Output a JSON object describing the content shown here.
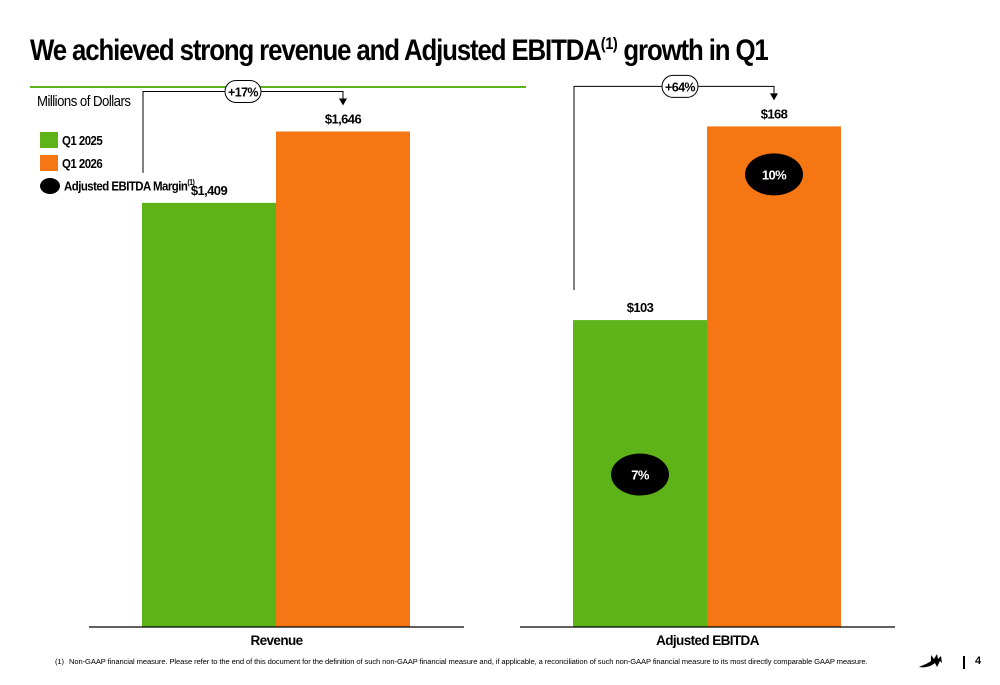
{
  "header": {
    "title": "We achieved strong revenue and Adjusted EBITDA",
    "title_sup": "(1)",
    "title_tail": " growth in Q1",
    "units_label": "Millions of Dollars"
  },
  "legend": {
    "items": [
      {
        "label": "Q1 2025",
        "sup": "",
        "color": "#5eb319",
        "shape": "square"
      },
      {
        "label": "Q1 2026",
        "sup": "",
        "color": "#f57612",
        "shape": "square"
      },
      {
        "label": "Adjusted EBITDA Margin",
        "sup": "(1)",
        "color": "#000000",
        "shape": "ellipse"
      }
    ]
  },
  "chart_data": {
    "type": "bar",
    "series_colors": {
      "Q1 2025": "#5eb319",
      "Q1 2026": "#f57612"
    },
    "panels": [
      {
        "category": "Revenue",
        "series": [
          {
            "name": "Q1 2025",
            "value": 1409,
            "label": "$1,409"
          },
          {
            "name": "Q1 2026",
            "value": 1646,
            "label": "$1,646"
          }
        ],
        "growth_label": "+17%",
        "ylim": [
          0,
          1950
        ],
        "margins": []
      },
      {
        "category": "Adjusted EBITDA",
        "series": [
          {
            "name": "Q1 2025",
            "value": 103,
            "label": "$103"
          },
          {
            "name": "Q1 2026",
            "value": 168,
            "label": "$168"
          }
        ],
        "growth_label": "+64%",
        "ylim": [
          0,
          197
        ],
        "margins": [
          {
            "series": "Q1 2025",
            "label": "7%"
          },
          {
            "series": "Q1 2026",
            "label": "10%"
          }
        ]
      }
    ]
  },
  "footer": {
    "footnote_mark": "(1)",
    "footnote_text": "Non-GAAP financial measure. Please refer to the end of this document for the definition of such non-GAAP financial measure and, if applicable, a reconciliation of such non-GAAP financial measure to its most directly comparable GAAP measure.",
    "page_number": "4"
  }
}
